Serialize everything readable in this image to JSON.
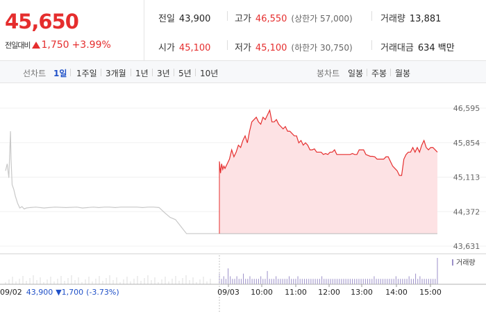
{
  "quote": {
    "current_price": "45,650",
    "diff_label": "전일대비",
    "diff_value": "1,750",
    "diff_rate": "+3.99%",
    "prev_close_label": "전일",
    "prev_close": "43,900",
    "high_label": "고가",
    "high": "46,550",
    "upper_limit_text": "(상한가 57,000)",
    "volume_label": "거래량",
    "volume": "13,881",
    "open_label": "시가",
    "open": "45,100",
    "low_label": "저가",
    "low": "45,100",
    "lower_limit_text": "(하한가 30,750)",
    "amount_label": "거래대금",
    "amount": "634 백만"
  },
  "tabs": {
    "line_label": "선차트",
    "line_periods": [
      "1일",
      "1주일",
      "3개월",
      "1년",
      "3년",
      "5년",
      "10년"
    ],
    "candle_label": "봉차트",
    "candle_periods": [
      "일봉",
      "주봉",
      "월봉"
    ]
  },
  "colors": {
    "up": "#e52d2d",
    "down": "#1f50c8",
    "prev_day_line": "#c8c8c8",
    "area_fill": "#fde2e4",
    "volume_bar": "#9b8fc8"
  },
  "chart_data": {
    "type": "area",
    "ylim": [
      43631,
      46595
    ],
    "y_ticks": [
      "46,595",
      "45,854",
      "45,113",
      "44,372",
      "43,631"
    ],
    "x_ticks": [
      "09/03",
      "10:00",
      "11:00",
      "12:00",
      "13:00",
      "14:00",
      "15:00"
    ],
    "legend_volume": "거래량",
    "prev_day": {
      "date_label": "09/02",
      "close": "43,900",
      "change": "▼1,700",
      "rate": "(-3.73%)",
      "x": [
        0,
        3,
        6,
        9,
        10,
        12,
        15,
        18,
        22,
        26,
        30,
        34,
        38,
        45,
        55,
        70,
        90,
        110,
        130,
        140,
        150,
        160,
        170,
        180,
        190,
        200,
        210,
        220,
        230,
        240,
        250,
        260,
        270,
        280,
        290,
        300,
        310,
        320,
        330,
        340,
        350,
        360,
        370,
        380,
        390
      ],
      "y": [
        45250,
        45400,
        45100,
        46100,
        45500,
        44950,
        44850,
        44700,
        44550,
        44450,
        44480,
        44430,
        44450,
        44460,
        44470,
        44450,
        44470,
        44460,
        44470,
        44450,
        44460,
        44470,
        44460,
        44470,
        44470,
        44460,
        44470,
        44470,
        44470,
        44470,
        44460,
        44470,
        44470,
        44460,
        44350,
        44250,
        44200,
        44050,
        43900,
        43900,
        43900,
        43900,
        43900,
        43900,
        43900
      ]
    },
    "today": {
      "x": [
        0,
        2,
        4,
        6,
        8,
        10,
        14,
        18,
        22,
        26,
        30,
        34,
        38,
        42,
        46,
        50,
        54,
        58,
        62,
        66,
        70,
        74,
        78,
        82,
        86,
        90,
        94,
        98,
        102,
        106,
        110,
        114,
        118,
        122,
        126,
        130,
        134,
        138,
        142,
        146,
        150,
        154,
        158,
        162,
        166,
        170,
        174,
        178,
        182,
        186,
        190,
        194,
        198,
        202,
        206,
        210,
        214,
        218,
        222,
        226,
        230,
        234,
        238,
        242,
        246,
        250,
        254,
        258,
        262,
        266,
        270,
        274,
        278,
        282,
        286,
        290,
        294,
        298,
        302,
        306,
        310,
        314,
        318,
        322,
        326,
        330,
        334,
        338,
        342,
        346,
        350,
        354,
        358,
        362,
        366,
        370,
        374,
        378,
        382,
        386,
        390
      ],
      "y": [
        45450,
        45200,
        45400,
        45280,
        45350,
        45300,
        45400,
        45500,
        45700,
        45550,
        45650,
        45800,
        45750,
        45900,
        46000,
        45850,
        46100,
        46300,
        46350,
        46400,
        46300,
        46250,
        46400,
        46350,
        46450,
        46550,
        46300,
        46300,
        46350,
        46250,
        46200,
        46150,
        46200,
        46100,
        46100,
        46050,
        46000,
        46000,
        45850,
        45900,
        45800,
        45850,
        45800,
        45700,
        45700,
        45720,
        45650,
        45650,
        45650,
        45600,
        45620,
        45600,
        45650,
        45650,
        45700,
        45600,
        45600,
        45600,
        45600,
        45600,
        45600,
        45600,
        45620,
        45600,
        45600,
        45700,
        45700,
        45700,
        45600,
        45580,
        45560,
        45560,
        45550,
        45500,
        45500,
        45500,
        45500,
        45550,
        45550,
        45450,
        45350,
        45300,
        45250,
        45150,
        45150,
        45500,
        45600,
        45650,
        45650,
        45750,
        45650,
        45750,
        45650,
        45800,
        45900,
        45750,
        45700,
        45750,
        45750,
        45700,
        45650
      ]
    },
    "volume": [
      3,
      1,
      2,
      1,
      5,
      2,
      1,
      1,
      2,
      1,
      1,
      3,
      1,
      1,
      2,
      1,
      1,
      1,
      1,
      2,
      1,
      1,
      4,
      1,
      1,
      1,
      2,
      1,
      1,
      1,
      1,
      1,
      2,
      1,
      1,
      1,
      2,
      1,
      1,
      1,
      1,
      1,
      1,
      1,
      1,
      1,
      1,
      2,
      1,
      1,
      1,
      1,
      1,
      1,
      1,
      1,
      1,
      1,
      1,
      1,
      1,
      1,
      1,
      1,
      1,
      1,
      1,
      1,
      1,
      1,
      1,
      2,
      1,
      1,
      1,
      1,
      1,
      1,
      1,
      1,
      1,
      2,
      1,
      1,
      1,
      1,
      1,
      2,
      1,
      1,
      3,
      1,
      2,
      1,
      1,
      1,
      1,
      1,
      1,
      1,
      9
    ]
  }
}
